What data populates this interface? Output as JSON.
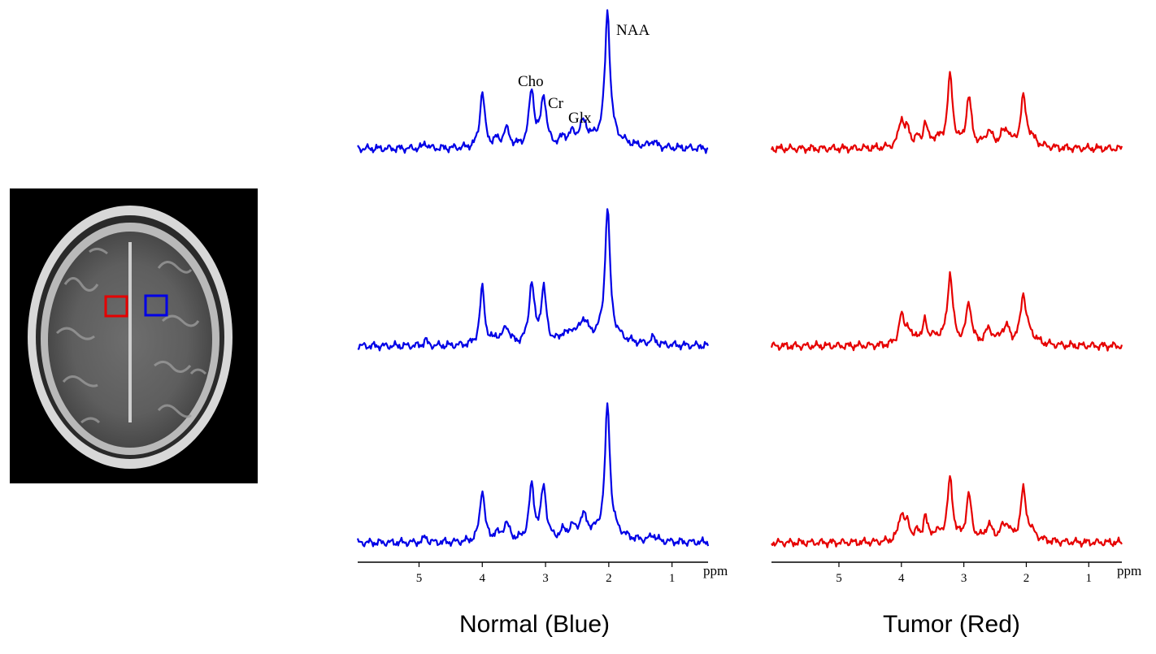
{
  "chart_data": [
    {
      "type": "line",
      "caption": "Normal (Blue)",
      "color": "#0000e6",
      "xlabel": "ppm",
      "x_axis_reversed": true,
      "xlim": [
        5.97,
        0.43
      ],
      "xticks": [
        5,
        4,
        3,
        2,
        1
      ],
      "peak_labels": [
        "Cho",
        "Cr",
        "Glx",
        "NAA"
      ],
      "series": [
        {
          "values_note_x": "ppm",
          "points": [
            [
              5.97,
              0.0
            ],
            [
              4.0,
              0.45
            ],
            [
              3.22,
              0.45
            ],
            [
              3.03,
              0.4
            ],
            [
              2.4,
              0.17
            ],
            [
              2.02,
              1.0
            ],
            [
              0.43,
              0.02
            ]
          ]
        },
        {
          "points": [
            [
              5.97,
              0.0
            ],
            [
              4.0,
              0.46
            ],
            [
              3.22,
              0.48
            ],
            [
              3.03,
              0.43
            ],
            [
              2.4,
              0.17
            ],
            [
              2.02,
              1.0
            ],
            [
              0.43,
              0.0
            ]
          ]
        },
        {
          "points": [
            [
              5.97,
              0.0
            ],
            [
              4.0,
              0.42
            ],
            [
              3.22,
              0.43
            ],
            [
              3.03,
              0.42
            ],
            [
              2.4,
              0.17
            ],
            [
              2.02,
              1.0
            ],
            [
              0.43,
              0.0
            ]
          ]
        }
      ]
    },
    {
      "type": "line",
      "caption": "Tumor (Red)",
      "color": "#e60000",
      "xlabel": "ppm",
      "x_axis_reversed": true,
      "xlim": [
        6.08,
        0.47
      ],
      "xticks": [
        5,
        4,
        3,
        2,
        1
      ],
      "series": [
        {
          "points": [
            [
              6.08,
              0.0
            ],
            [
              4.0,
              0.22
            ],
            [
              3.22,
              0.55
            ],
            [
              2.92,
              0.39
            ],
            [
              2.05,
              0.36
            ],
            [
              0.47,
              0.01
            ]
          ]
        },
        {
          "points": [
            [
              6.08,
              0.0
            ],
            [
              4.0,
              0.22
            ],
            [
              3.22,
              0.55
            ],
            [
              2.92,
              0.33
            ],
            [
              2.05,
              0.37
            ],
            [
              0.47,
              0.01
            ]
          ]
        },
        {
          "points": [
            [
              6.08,
              0.0
            ],
            [
              4.0,
              0.22
            ],
            [
              3.22,
              0.48
            ],
            [
              2.92,
              0.36
            ],
            [
              2.05,
              0.37
            ],
            [
              0.47,
              0.01
            ]
          ]
        }
      ]
    }
  ],
  "mri": {
    "roi_tumor_color": "#e60000",
    "roi_normal_color": "#0000e6"
  }
}
